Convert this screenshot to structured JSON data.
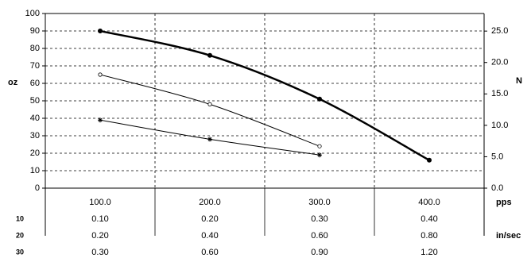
{
  "chart_data": {
    "type": "line",
    "x": [
      100,
      200,
      300,
      400
    ],
    "x_tick_labels": [
      "100.0",
      "200.0",
      "300.0",
      "400.0"
    ],
    "x_unit": "pps",
    "y_left": {
      "label": "oz",
      "ylim": [
        0,
        100
      ],
      "ticks": [
        "0",
        "10",
        "20",
        "30",
        "40",
        "50",
        "60",
        "70",
        "80",
        "90",
        "100"
      ]
    },
    "y_right": {
      "label": "N",
      "ylim": [
        0,
        27.8
      ],
      "ticks": [
        "0.0",
        "5.0",
        "10.0",
        "15.0",
        "20.0",
        "25.0"
      ]
    },
    "series": [
      {
        "x": [
          100,
          200,
          300,
          400
        ],
        "values": [
          90,
          76,
          51,
          16
        ],
        "color": "#000000",
        "style": "thick-line-filled-circle"
      },
      {
        "x": [
          100,
          200,
          300
        ],
        "values": [
          65,
          48,
          24
        ],
        "color": "#000000",
        "style": "thin-line-open-circle"
      },
      {
        "x": [
          100,
          200,
          300
        ],
        "values": [
          39,
          28,
          19
        ],
        "color": "#000000",
        "style": "thin-line-star"
      }
    ],
    "grid": true,
    "table": {
      "unit": "in/sec",
      "rows": [
        {
          "label": "10",
          "values": [
            "0.10",
            "0.20",
            "0.30",
            "0.40"
          ]
        },
        {
          "label": "20",
          "values": [
            "0.20",
            "0.40",
            "0.60",
            "0.80"
          ]
        },
        {
          "label": "30",
          "values": [
            "0.30",
            "0.60",
            "0.90",
            "1.20"
          ]
        }
      ]
    }
  }
}
